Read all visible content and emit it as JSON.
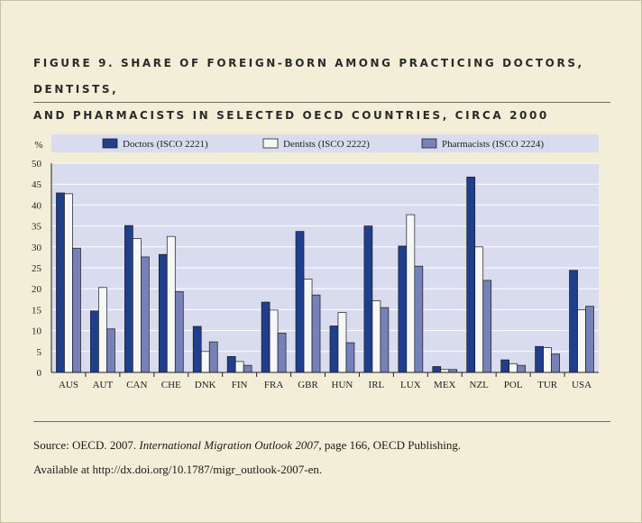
{
  "title_line1": "FIGURE 9. SHARE OF FOREIGN-BORN AMONG PRACTICING DOCTORS, DENTISTS,",
  "title_line2": "AND PHARMACISTS IN SELECTED OECD COUNTRIES, CIRCA 2000",
  "source": {
    "prefix": "Source: OECD. 2007. ",
    "publication": "International Migration Outlook 2007",
    "suffix": ", page 166, OECD Publishing.",
    "available": "Available at http://dx.doi.org/10.1787/migr_outlook-2007-en."
  },
  "colors": {
    "frame_bg": "#f3eed7",
    "plot_bg": "#d9dcef",
    "doctors": "#1f3f8c",
    "dentists": "#f7f7f7",
    "pharmacists": "#7581b8"
  },
  "chart_data": {
    "type": "bar",
    "ylabel": "%",
    "ylim": [
      0,
      50
    ],
    "yticks": [
      0,
      5,
      10,
      15,
      20,
      25,
      30,
      35,
      40,
      45,
      50
    ],
    "grid": true,
    "legend_position": "top",
    "categories": [
      "AUS",
      "AUT",
      "CAN",
      "CHE",
      "DNK",
      "FIN",
      "FRA",
      "GBR",
      "HUN",
      "IRL",
      "LUX",
      "MEX",
      "NZL",
      "POL",
      "TUR",
      "USA"
    ],
    "series": [
      {
        "name": "Doctors (ISCO 2221)",
        "values": [
          42.9,
          14.7,
          35.1,
          28.2,
          11.0,
          3.8,
          16.8,
          33.7,
          11.1,
          35.0,
          30.2,
          1.4,
          46.7,
          3.0,
          6.2,
          24.4
        ]
      },
      {
        "name": "Dentists (ISCO 2222)",
        "values": [
          42.7,
          20.3,
          32.0,
          32.5,
          5.0,
          2.6,
          14.9,
          22.3,
          14.3,
          17.1,
          37.7,
          0.7,
          30.0,
          2.1,
          5.9,
          15.0
        ]
      },
      {
        "name": "Pharmacists (ISCO 2224)",
        "values": [
          29.7,
          10.4,
          27.6,
          19.3,
          7.3,
          1.7,
          9.4,
          18.5,
          7.1,
          15.5,
          25.4,
          0.7,
          22.0,
          1.7,
          4.4,
          15.8
        ]
      }
    ]
  }
}
